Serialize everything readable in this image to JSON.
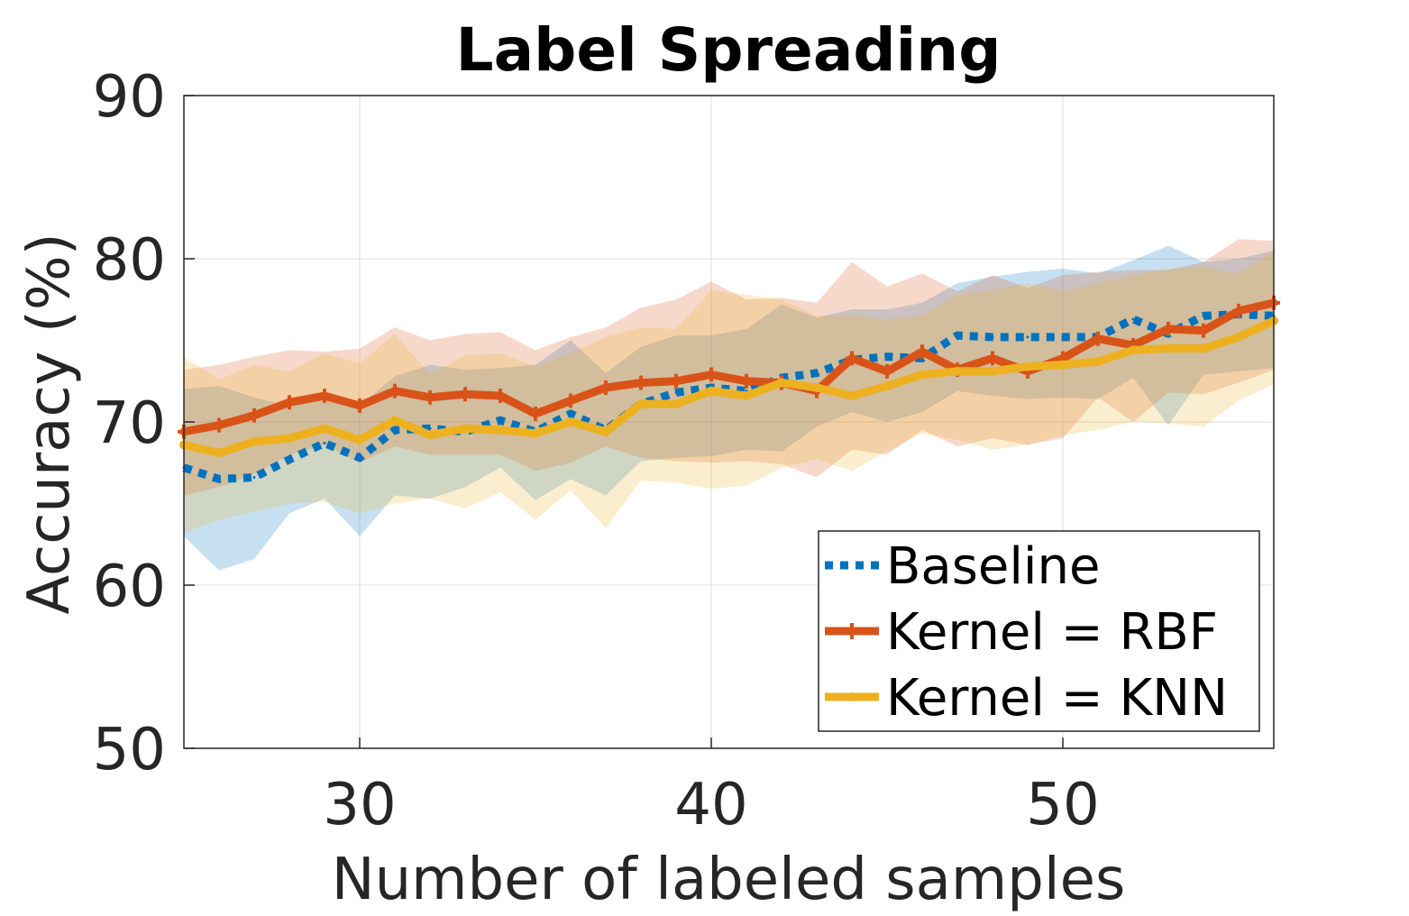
{
  "chart_data": {
    "type": "line",
    "title": "Label Spreading",
    "xlabel": "Number of labeled samples",
    "ylabel": "Accuracy (%)",
    "xlim": [
      25,
      56
    ],
    "ylim": [
      50,
      90
    ],
    "xticks": [
      30,
      40,
      50
    ],
    "yticks": [
      50,
      60,
      70,
      80,
      90
    ],
    "grid": true,
    "legend_position": "bottom-right",
    "x": [
      25,
      26,
      27,
      28,
      29,
      30,
      31,
      32,
      33,
      34,
      35,
      36,
      37,
      38,
      39,
      40,
      41,
      42,
      43,
      44,
      45,
      46,
      47,
      48,
      49,
      50,
      51,
      52,
      53,
      54,
      55,
      56
    ],
    "series": [
      {
        "name": "Baseline",
        "color": "#0072BD",
        "style": "dotted",
        "values": [
          67.2,
          66.5,
          66.6,
          67.7,
          68.7,
          67.8,
          69.5,
          69.6,
          69.4,
          70.1,
          69.4,
          70.5,
          69.5,
          71.1,
          71.8,
          72.1,
          71.9,
          72.7,
          73.0,
          73.8,
          74.0,
          73.9,
          75.3,
          75.2,
          75.2,
          75.2,
          75.2,
          76.3,
          75.4,
          76.5,
          76.6,
          76.5
        ],
        "band_upper": [
          72.0,
          72.2,
          71.5,
          71.0,
          71.5,
          71.0,
          72.8,
          73.5,
          73.2,
          73.3,
          73.5,
          75.0,
          73.0,
          74.6,
          75.3,
          75.3,
          75.7,
          77.2,
          76.4,
          76.9,
          76.9,
          77.3,
          78.5,
          78.9,
          79.2,
          79.4,
          79.1,
          79.9,
          80.8,
          79.8,
          80.0,
          80.5
        ],
        "band_lower": [
          63.0,
          60.9,
          61.6,
          64.4,
          65.3,
          63.0,
          65.5,
          65.3,
          66.0,
          67.2,
          65.2,
          66.5,
          65.5,
          67.6,
          67.8,
          67.9,
          68.3,
          68.2,
          69.7,
          70.6,
          70.0,
          70.6,
          71.9,
          71.6,
          71.4,
          71.5,
          71.4,
          72.7,
          69.8,
          72.9,
          73.1,
          73.3
        ]
      },
      {
        "name": "Kernel = RBF",
        "color": "#D95319",
        "style": "solid-plus",
        "values": [
          69.4,
          69.8,
          70.4,
          71.2,
          71.6,
          71.0,
          71.9,
          71.5,
          71.7,
          71.6,
          70.5,
          71.3,
          72.1,
          72.4,
          72.5,
          72.9,
          72.5,
          72.4,
          71.9,
          73.9,
          73.1,
          74.3,
          73.2,
          73.9,
          73.1,
          73.9,
          75.1,
          74.7,
          75.7,
          75.6,
          76.8,
          77.3
        ],
        "band_upper": [
          73.2,
          73.5,
          74.0,
          74.4,
          74.3,
          74.5,
          75.8,
          75.0,
          75.4,
          75.5,
          74.4,
          75.2,
          75.8,
          77.0,
          77.5,
          78.6,
          77.5,
          77.6,
          77.3,
          79.8,
          78.3,
          79.1,
          78.0,
          79.0,
          78.2,
          79.0,
          79.2,
          79.3,
          79.3,
          79.8,
          81.2,
          81.1
        ],
        "band_lower": [
          65.5,
          66.0,
          66.8,
          68.0,
          68.6,
          67.5,
          68.5,
          68.0,
          68.0,
          68.0,
          67.0,
          67.5,
          68.5,
          67.8,
          67.6,
          67.5,
          67.6,
          67.4,
          66.6,
          68.3,
          68.0,
          69.5,
          68.5,
          69.0,
          68.6,
          69.0,
          71.5,
          70.0,
          71.8,
          71.7,
          72.4,
          73.2
        ]
      },
      {
        "name": "Kernel = KNN",
        "color": "#EDB120",
        "style": "solid-dot",
        "values": [
          68.6,
          68.1,
          68.8,
          69.0,
          69.6,
          68.9,
          70.1,
          69.2,
          69.6,
          69.5,
          69.3,
          70.0,
          69.4,
          71.1,
          71.1,
          71.9,
          71.6,
          72.4,
          72.1,
          71.6,
          72.2,
          72.9,
          73.1,
          73.1,
          73.4,
          73.5,
          73.7,
          74.4,
          74.5,
          74.5,
          75.2,
          76.2
        ],
        "band_upper": [
          74.0,
          72.6,
          73.5,
          73.1,
          74.2,
          73.6,
          75.4,
          72.9,
          74.1,
          74.2,
          73.4,
          74.2,
          75.2,
          75.8,
          75.7,
          78.1,
          77.8,
          77.5,
          76.5,
          76.5,
          76.3,
          76.5,
          77.8,
          78.1,
          78.5,
          78.0,
          78.5,
          79.0,
          79.4,
          79.5,
          79.1,
          80.5
        ],
        "band_lower": [
          63.2,
          64.0,
          64.5,
          65.0,
          65.1,
          64.4,
          65.0,
          65.3,
          64.7,
          65.7,
          64.0,
          65.8,
          63.5,
          66.4,
          66.3,
          65.9,
          66.1,
          67.2,
          67.7,
          67.0,
          68.2,
          69.3,
          68.9,
          68.3,
          68.6,
          69.2,
          69.5,
          70.0,
          69.9,
          69.7,
          71.3,
          72.3
        ]
      }
    ]
  }
}
